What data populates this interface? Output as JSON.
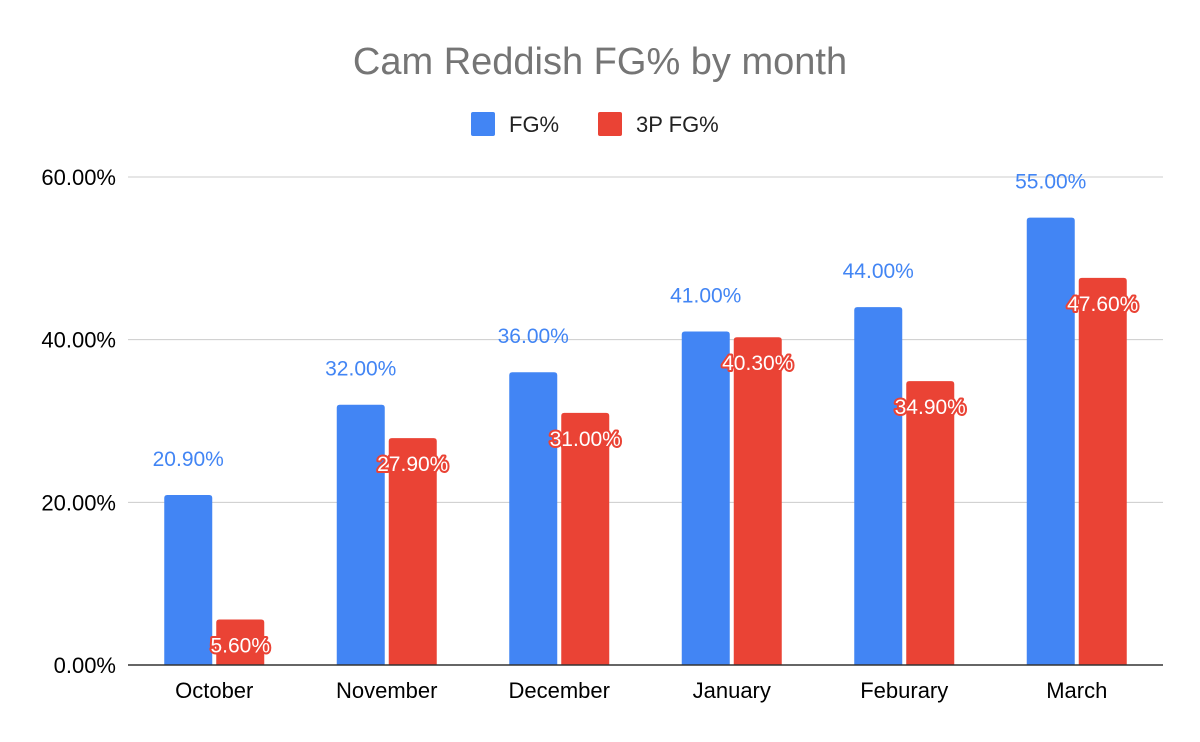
{
  "chart_data": {
    "type": "bar",
    "title": "Cam Reddish FG% by month",
    "xlabel": "",
    "ylabel": "",
    "categories": [
      "October",
      "November",
      "December",
      "January",
      "Feburary",
      "March"
    ],
    "series": [
      {
        "name": "FG%",
        "color": "#4285F4",
        "label_color": "#4285F4",
        "values": [
          20.9,
          32.0,
          36.0,
          41.0,
          44.0,
          55.0
        ],
        "labels": [
          "20.90%",
          "32.00%",
          "36.00%",
          "41.00%",
          "44.00%",
          "55.00%"
        ]
      },
      {
        "name": "3P FG%",
        "color": "#EA4335",
        "label_color": "#FFFFFF",
        "values": [
          5.6,
          27.9,
          31.0,
          40.3,
          34.9,
          47.6
        ],
        "labels": [
          "5.60%",
          "27.90%",
          "31.00%",
          "40.30%",
          "34.90%",
          "47.60%"
        ]
      }
    ],
    "ylim": [
      0,
      60
    ],
    "yticks": [
      0,
      20,
      40,
      60
    ],
    "ytick_labels": [
      "0.00%",
      "20.00%",
      "40.00%",
      "60.00%"
    ],
    "grid": true,
    "legend": "top-center"
  }
}
